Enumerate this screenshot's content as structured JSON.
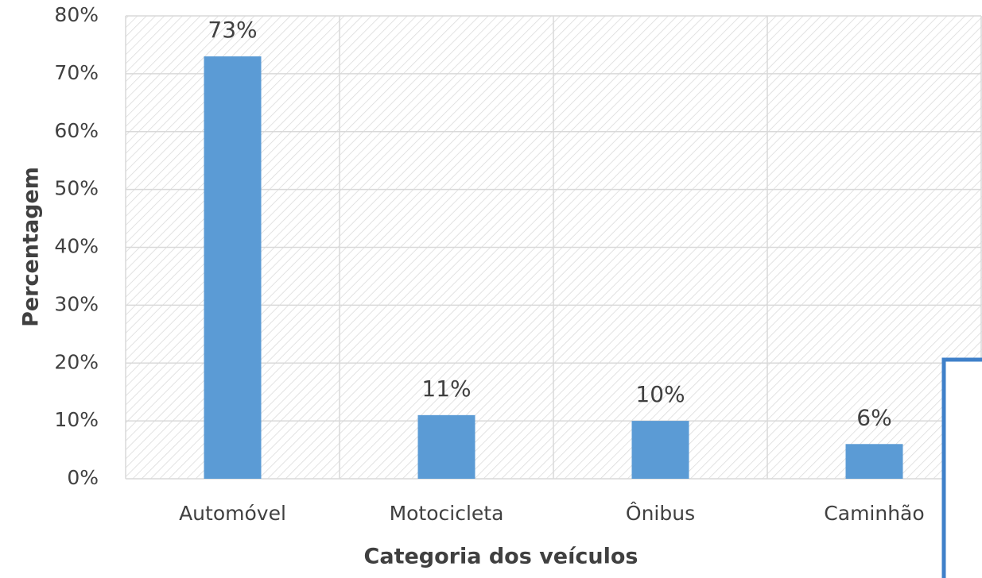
{
  "chart_data": {
    "type": "bar",
    "x_label": "Categoria dos veículos",
    "y_label": "Percentagem",
    "categories": [
      "Automóvel",
      "Motocicleta",
      "Ônibus",
      "Caminhão"
    ],
    "values": [
      73,
      11,
      10,
      6
    ],
    "value_labels": [
      "73%",
      "11%",
      "10%",
      "6%"
    ],
    "color": "#5b9bd5",
    "ylim": [
      0,
      80
    ],
    "yticks": [
      {
        "value": 0,
        "label": "0%"
      },
      {
        "value": 10,
        "label": "10%"
      },
      {
        "value": 20,
        "label": "20%"
      },
      {
        "value": 30,
        "label": "30%"
      },
      {
        "value": 40,
        "label": "40%"
      },
      {
        "value": 50,
        "label": "50%"
      },
      {
        "value": 60,
        "label": "60%"
      },
      {
        "value": 70,
        "label": "70%"
      },
      {
        "value": 80,
        "label": "80%"
      }
    ],
    "grid": true
  }
}
